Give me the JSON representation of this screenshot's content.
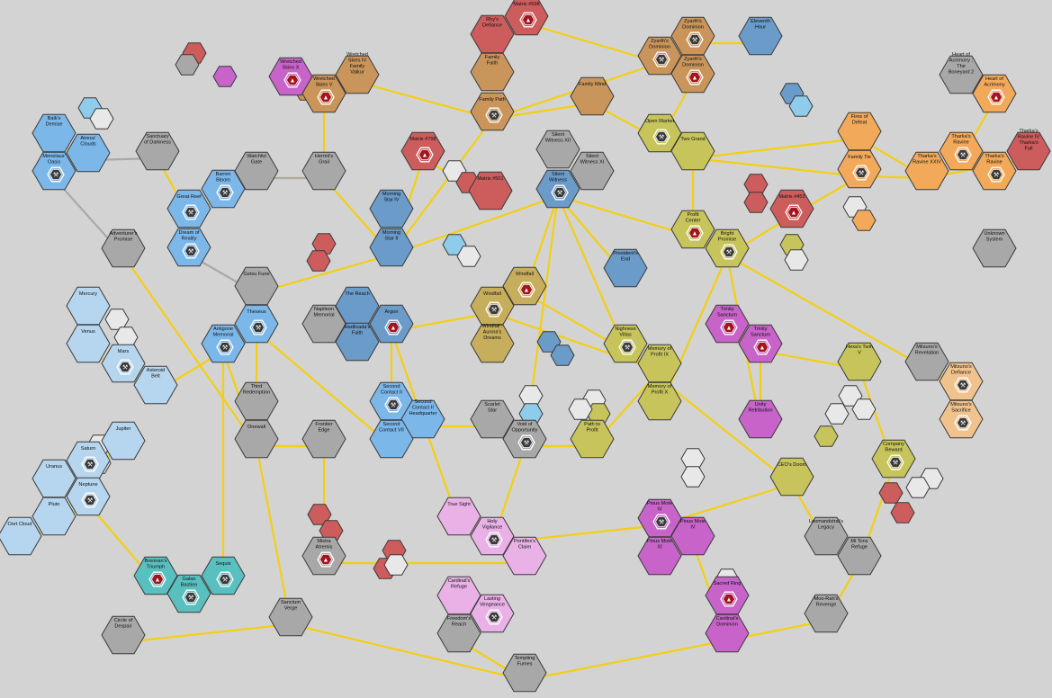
{
  "colors": {
    "blue": "#6a9bc9",
    "lightblue": "#7cb7ea",
    "paleblue": "#b6d5ee",
    "cyan": "#8fcbea",
    "red": "#cd5c5c",
    "orange": "#f2a95a",
    "peach": "#f0c38e",
    "tan": "#c9955a",
    "gold": "#c7ae5c",
    "olive": "#c6c45a",
    "magenta": "#c763c9",
    "pink": "#e9b1e6",
    "grey": "#a8a8a8",
    "teal": "#5abfbf",
    "white": "#e8e8e8",
    "lane": "#f3cf13"
  },
  "systems": [
    {
      "id": "matrix-598",
      "label": "Matrix #598",
      "color": "red",
      "icon": "warning"
    },
    {
      "id": "rhys-defiance",
      "label": "Rhy's Defiance",
      "color": "red"
    },
    {
      "id": "family-faith",
      "label": "Family Faith",
      "color": "tan"
    },
    {
      "id": "family-path",
      "label": "Family Path",
      "color": "tan",
      "icon": "ship"
    },
    {
      "id": "family-mind",
      "label": "Family Mind",
      "color": "tan"
    },
    {
      "id": "zyarths-dominion-a",
      "label": "Zyarth's Dominion",
      "color": "tan",
      "icon": "ship"
    },
    {
      "id": "zyarths-dominion-b",
      "label": "Zyarth's Dominion",
      "color": "tan",
      "icon": "ship"
    },
    {
      "id": "zyarths-dominion-c",
      "label": "Zyarth's Dominion",
      "color": "tan",
      "icon": "warning"
    },
    {
      "id": "eleventh-hour",
      "label": "Eleventh Hour",
      "color": "blue"
    },
    {
      "id": "wretched-skies-x",
      "label": "Wretched Skies X",
      "color": "magenta",
      "icon": "warning"
    },
    {
      "id": "wretched-skies-v",
      "label": "Wretched Skies V",
      "color": "tan",
      "icon": "warning"
    },
    {
      "id": "wretched-skies-iv",
      "label": "Wretched Skies IV Family Valkur",
      "color": "tan"
    },
    {
      "id": "heart-of-acrimony-2",
      "label": "Heart of Acrimony : The Boneyard 2",
      "color": "grey"
    },
    {
      "id": "heart-of-acrimony",
      "label": "Heart of Acrimony",
      "color": "orange",
      "icon": "warning"
    },
    {
      "id": "sanctuary-darkness",
      "label": "Sanctuary of Darkness",
      "color": "grey"
    },
    {
      "id": "watchful-gate",
      "label": "Watchful Gate",
      "color": "grey"
    },
    {
      "id": "hermits-grail",
      "label": "Hermit's Grail",
      "color": "grey"
    },
    {
      "id": "matrix-798",
      "label": "Matrix #798",
      "color": "red",
      "icon": "warning"
    },
    {
      "id": "matrix-501",
      "label": "Matrix #501",
      "color": "red"
    },
    {
      "id": "silent-witness-xii",
      "label": "Silent Witness XII",
      "color": "grey"
    },
    {
      "id": "silent-witness-xi",
      "label": "Silent Witness XI",
      "color": "grey"
    },
    {
      "id": "silent-witness",
      "label": "Silent Witness",
      "color": "blue",
      "icon": "ship"
    },
    {
      "id": "open-market",
      "label": "Open Market",
      "color": "olive",
      "icon": "ship"
    },
    {
      "id": "two-grand",
      "label": "Two Grand",
      "color": "olive"
    },
    {
      "id": "fires-defeat",
      "label": "Fires of Defeat",
      "color": "orange"
    },
    {
      "id": "family-tie",
      "label": "Family Tie",
      "color": "orange",
      "icon": "ship"
    },
    {
      "id": "tharkas-ravine-xxiv",
      "label": "Tharka's Ravine XXIV",
      "color": "orange"
    },
    {
      "id": "tharkas-ravine",
      "label": "Tharka's Ravine",
      "color": "orange",
      "icon": "ship"
    },
    {
      "id": "tharkas-ravine-b",
      "label": "Tharka's Ravine",
      "color": "orange",
      "icon": "ship"
    },
    {
      "id": "tharkas-ravine-iv",
      "label": "Tharka's Ravine IV Tharka's Fall",
      "color": "red"
    },
    {
      "id": "balks-demise",
      "label": "Balk's Demise",
      "color": "lightblue"
    },
    {
      "id": "atreus-clouds",
      "label": "Atreus' Clouds",
      "color": "lightblue"
    },
    {
      "id": "menelaus-oasis",
      "label": "Menelaus' Oasis",
      "color": "lightblue",
      "icon": "ship"
    },
    {
      "id": "great-reef",
      "label": "Great Reef",
      "color": "lightblue",
      "icon": "ship"
    },
    {
      "id": "barren-bloom",
      "label": "Barren Bloom",
      "color": "lightblue",
      "icon": "ship"
    },
    {
      "id": "dream-of-reality",
      "label": "Dream of Reality",
      "color": "lightblue",
      "icon": "ship"
    },
    {
      "id": "adventurers-promise",
      "label": "Adventurer's Promise",
      "color": "grey"
    },
    {
      "id": "getsu-fune",
      "label": "Getsu Fune",
      "color": "grey"
    },
    {
      "id": "morning-star-iv",
      "label": "Morning Star IV",
      "color": "blue"
    },
    {
      "id": "morning-star-ii",
      "label": "Morning Star II",
      "color": "blue"
    },
    {
      "id": "matrix-453",
      "label": "Matrix #453",
      "color": "red",
      "icon": "warning"
    },
    {
      "id": "profit-center",
      "label": "Profit Center",
      "color": "olive",
      "icon": "warning"
    },
    {
      "id": "bright-promise",
      "label": "Bright Promise",
      "color": "olive",
      "icon": "ship"
    },
    {
      "id": "unknown-system",
      "label": "Unknown System",
      "color": "grey"
    },
    {
      "id": "president-end",
      "label": "President's End",
      "color": "blue"
    },
    {
      "id": "mercury",
      "label": "Mercury",
      "color": "paleblue"
    },
    {
      "id": "venus",
      "label": "Venus",
      "color": "paleblue"
    },
    {
      "id": "mars",
      "label": "Mars",
      "color": "paleblue",
      "icon": "ship"
    },
    {
      "id": "asteroid-belt",
      "label": "Asteroid Belt",
      "color": "paleblue"
    },
    {
      "id": "theseus",
      "label": "Theseus",
      "color": "lightblue",
      "icon": "ship"
    },
    {
      "id": "antigone-memorial",
      "label": "Antigone Memorial",
      "color": "lightblue",
      "icon": "ship"
    },
    {
      "id": "napileon-memorial",
      "label": "Napileon Memorial",
      "color": "grey"
    },
    {
      "id": "the-reach",
      "label": "The Reach",
      "color": "blue"
    },
    {
      "id": "hadlivadas-faith",
      "label": "Hadlivada's Faith",
      "color": "blue"
    },
    {
      "id": "argon",
      "label": "Argon",
      "color": "blue",
      "icon": "warning"
    },
    {
      "id": "windfall",
      "label": "Windfall",
      "color": "gold",
      "icon": "warning"
    },
    {
      "id": "windfall-b",
      "label": "Windfall",
      "color": "gold",
      "icon": "ship"
    },
    {
      "id": "windfall-aurora",
      "label": "Windfall : Aurora's Dreams",
      "color": "gold"
    },
    {
      "id": "nighness-villas",
      "label": "Nighness Villas",
      "color": "olive",
      "icon": "ship"
    },
    {
      "id": "memory-profit-ix",
      "label": "Memory of Profit IX",
      "color": "olive"
    },
    {
      "id": "memory-profit-x",
      "label": "Memory of Profit X",
      "color": "olive"
    },
    {
      "id": "trinity-sanctum",
      "label": "Trinity Sanctum",
      "color": "magenta",
      "icon": "warning"
    },
    {
      "id": "trinity-sanctum-b",
      "label": "Trinity Sanctum",
      "color": "magenta",
      "icon": "warning"
    },
    {
      "id": "unity-retribution",
      "label": "Unity Retribution",
      "color": "magenta"
    },
    {
      "id": "hexas-twin-v",
      "label": "Hexa's Twin V",
      "color": "olive"
    },
    {
      "id": "mitsunos-revelation",
      "label": "Mitsuno's Revelation",
      "color": "grey"
    },
    {
      "id": "mitsunos-defiance",
      "label": "Mitsuno's Defiance",
      "color": "peach",
      "icon": "ship"
    },
    {
      "id": "mitsunos-sacrifice",
      "label": "Mitsuno's Sacrifice",
      "color": "peach",
      "icon": "ship"
    },
    {
      "id": "third-redemption",
      "label": "Third Redemption",
      "color": "grey"
    },
    {
      "id": "onewall",
      "label": "Onewall",
      "color": "grey"
    },
    {
      "id": "frontier-edge",
      "label": "Frontier Edge",
      "color": "grey"
    },
    {
      "id": "second-contact-ii",
      "label": "Second Contact II",
      "color": "lightblue",
      "icon": "ship"
    },
    {
      "id": "second-contact-ii-b",
      "label": "Second Contact II Headquarter",
      "color": "lightblue"
    },
    {
      "id": "second-contact-vii",
      "label": "Second Contact VII",
      "color": "lightblue"
    },
    {
      "id": "scarlet-star",
      "label": "Scarlet Star",
      "color": "grey"
    },
    {
      "id": "void-opportunity",
      "label": "Void of Opportunity",
      "color": "grey",
      "icon": "ship"
    },
    {
      "id": "path-to-profit",
      "label": "Path to Profit",
      "color": "olive"
    },
    {
      "id": "jupiter",
      "label": "Jupiter",
      "color": "paleblue"
    },
    {
      "id": "saturn",
      "label": "Saturn",
      "color": "paleblue",
      "icon": "ship"
    },
    {
      "id": "uranus",
      "label": "Uranus",
      "color": "paleblue"
    },
    {
      "id": "neptune",
      "label": "Neptune",
      "color": "paleblue",
      "icon": "ship"
    },
    {
      "id": "pluto",
      "label": "Pluto",
      "color": "paleblue"
    },
    {
      "id": "oort-cloud",
      "label": "Oort Cloud",
      "color": "paleblue"
    },
    {
      "id": "company-reward",
      "label": "Company Reward",
      "color": "olive",
      "icon": "ship"
    },
    {
      "id": "ceos-doom",
      "label": "CEO's Doom",
      "color": "olive"
    },
    {
      "id": "true-sight",
      "label": "True Sight",
      "color": "pink"
    },
    {
      "id": "holy-vigilance",
      "label": "Holy Vigilance",
      "color": "pink",
      "icon": "ship"
    },
    {
      "id": "pontifexs-claim",
      "label": "Pontifex's Claim",
      "color": "pink"
    },
    {
      "id": "pious-mote-iv",
      "label": "Pious Mote IV",
      "color": "magenta",
      "icon": "ship"
    },
    {
      "id": "pious-mote-iv-b",
      "label": "Pious Mote IV",
      "color": "magenta"
    },
    {
      "id": "pious-mote-xi",
      "label": "Pious Mote XI",
      "color": "magenta"
    },
    {
      "id": "loomands-legacy",
      "label": "Loomandstrat's Legacy",
      "color": "grey"
    },
    {
      "id": "mi-tons-refuge",
      "label": "Mi Tons Refuge",
      "color": "grey"
    },
    {
      "id": "brennans-triumph",
      "label": "Brennan's Triumph",
      "color": "teal",
      "icon": "warning"
    },
    {
      "id": "galan-bastion",
      "label": "Galan Bastion",
      "color": "teal",
      "icon": "ship"
    },
    {
      "id": "sequis",
      "label": "Sequis",
      "color": "teal",
      "icon": "ship"
    },
    {
      "id": "circle-of-despair",
      "label": "Circle of Despair",
      "color": "grey"
    },
    {
      "id": "sanctum-verge",
      "label": "Sanctum Verge",
      "color": "grey"
    },
    {
      "id": "mistra-atremis",
      "label": "Mistra Atremis",
      "color": "grey",
      "icon": "warning"
    },
    {
      "id": "cardinals-refuge",
      "label": "Cardinal's Refuge",
      "color": "pink"
    },
    {
      "id": "lasting-vengeance",
      "label": "Lasting Vengeance",
      "color": "pink",
      "icon": "ship"
    },
    {
      "id": "freedoms-reach",
      "label": "Freedom's Reach",
      "color": "grey"
    },
    {
      "id": "sacred-ring",
      "label": "Sacred Ring",
      "color": "magenta",
      "icon": "warning"
    },
    {
      "id": "cardinals-dominion",
      "label": "Cardinal's Dominion",
      "color": "magenta"
    },
    {
      "id": "moo-rahs-revenge",
      "label": "Moo-Rah's Revenge",
      "color": "grey"
    },
    {
      "id": "tempting-fumes",
      "label": "Tempting Fumes",
      "color": "grey"
    }
  ]
}
